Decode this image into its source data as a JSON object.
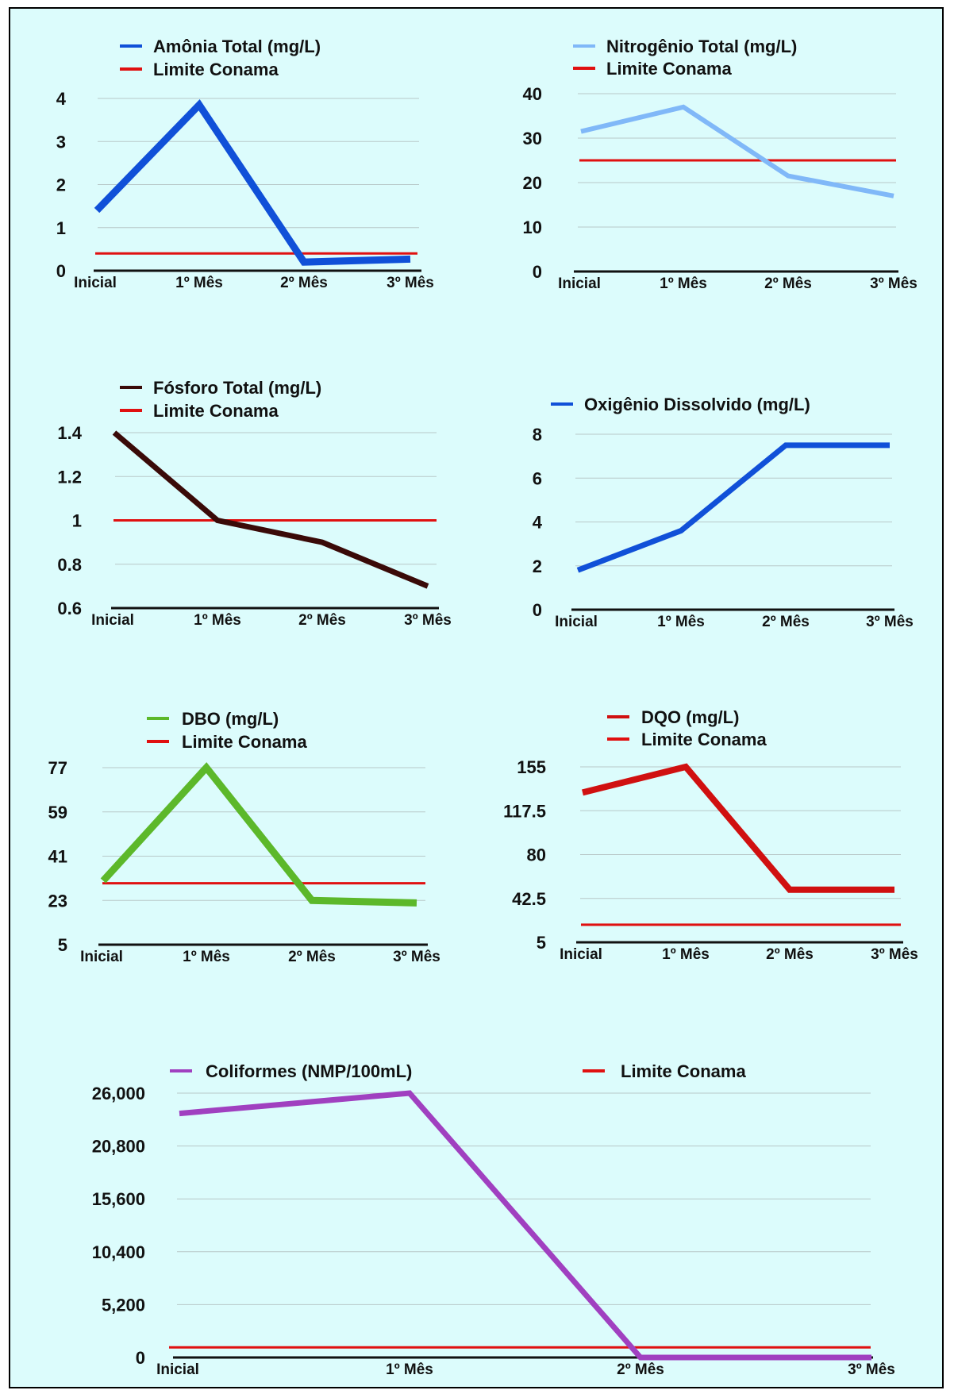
{
  "chart_data": [
    {
      "type": "line",
      "categories": [
        "Inicial",
        "1º Mês",
        "2º Mês",
        "3º Mês"
      ],
      "series": [
        {
          "name": "Amônia Total (mg/L)",
          "values": [
            1.4,
            3.85,
            0.2,
            0.27
          ],
          "color": "#1050d8"
        },
        {
          "name": "Limite Conama",
          "values": [
            0.4,
            0.4,
            0.4,
            0.4
          ],
          "color": "#e01010"
        }
      ],
      "yticks": [
        "0",
        "1",
        "2",
        "3",
        "4"
      ],
      "ylim": [
        0,
        4
      ],
      "grid": true,
      "legend": "top"
    },
    {
      "type": "line",
      "categories": [
        "Inicial",
        "1º Mês",
        "2º Mês",
        "3º Mês"
      ],
      "series": [
        {
          "name": "Nitrogênio Total (mg/L)",
          "values": [
            31.5,
            37,
            21.5,
            17
          ],
          "color": "#80b8f8"
        },
        {
          "name": "Limite Conama",
          "values": [
            25,
            25,
            25,
            25
          ],
          "color": "#e01010"
        }
      ],
      "yticks": [
        "0",
        "10",
        "20",
        "30",
        "40"
      ],
      "ylim": [
        0,
        40
      ],
      "grid": true,
      "legend": "top"
    },
    {
      "type": "line",
      "categories": [
        "Inicial",
        "1º Mês",
        "2º Mês",
        "3º Mês"
      ],
      "series": [
        {
          "name": "Fósforo Total (mg/L)",
          "values": [
            1.4,
            1.0,
            0.9,
            0.7
          ],
          "color": "#3a0a08"
        },
        {
          "name": "Limite Conama",
          "values": [
            1,
            1,
            1,
            1
          ],
          "color": "#e01010"
        }
      ],
      "yticks": [
        "0.6",
        "0.8",
        "1",
        "1.2",
        "1.4"
      ],
      "ylim": [
        0.6,
        1.4
      ],
      "grid": true,
      "legend": "top"
    },
    {
      "type": "line",
      "categories": [
        "Inicial",
        "1º Mês",
        "2º Mês",
        "3º Mês"
      ],
      "series": [
        {
          "name": "Oxigênio Dissolvido (mg/L)",
          "values": [
            1.8,
            3.6,
            7.5,
            7.5
          ],
          "color": "#1050d8"
        }
      ],
      "yticks": [
        "0",
        "2",
        "4",
        "6",
        "8"
      ],
      "ylim": [
        0,
        8
      ],
      "grid": true,
      "legend": "top"
    },
    {
      "type": "line",
      "categories": [
        "Inicial",
        "1º Mês",
        "2º Mês",
        "3º Mês"
      ],
      "series": [
        {
          "name": "DBO (mg/L)",
          "values": [
            31,
            77,
            23,
            22
          ],
          "color": "#5cb82a"
        },
        {
          "name": "Limite Conama",
          "values": [
            30,
            30,
            30,
            30
          ],
          "color": "#e01010"
        }
      ],
      "yticks": [
        "5",
        "23",
        "41",
        "59",
        "77"
      ],
      "ylim": [
        5,
        77
      ],
      "grid": true,
      "legend": "top"
    },
    {
      "type": "line",
      "categories": [
        "Inicial",
        "1º Mês",
        "2º Mês",
        "3º Mês"
      ],
      "series": [
        {
          "name": "DQO (mg/L)",
          "values": [
            133,
            155,
            50,
            50
          ],
          "color": "#d01010"
        },
        {
          "name": "Limite Conama",
          "values": [
            20,
            20,
            20,
            20
          ],
          "color": "#e01010"
        }
      ],
      "yticks": [
        "5",
        "42.5",
        "80",
        "117.5",
        "155"
      ],
      "ylim": [
        5,
        155
      ],
      "grid": true,
      "legend": "top"
    },
    {
      "type": "line",
      "categories": [
        "Inicial",
        "1º Mês",
        "2º Mês",
        "3º Mês"
      ],
      "series": [
        {
          "name": "Coliformes (NMP/100mL)",
          "values": [
            24000,
            26000,
            0,
            0
          ],
          "color": "#a040c0"
        },
        {
          "name": "Limite Conama",
          "values": [
            1000,
            1000,
            1000,
            1000
          ],
          "color": "#e01010"
        }
      ],
      "yticks": [
        "0",
        "5,200",
        "10,400",
        "15,600",
        "20,800",
        "26,000"
      ],
      "ylim": [
        0,
        26000
      ],
      "grid": true,
      "legend": "top"
    }
  ]
}
